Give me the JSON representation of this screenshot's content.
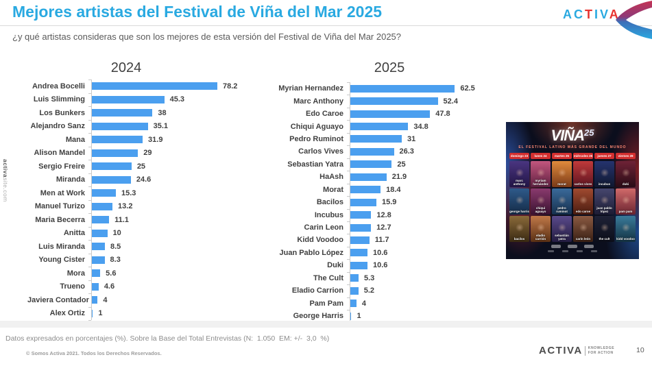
{
  "header": {
    "title": "Mejores artistas del Festival de Viña del Mar 2025",
    "subtitle": "¿y qué artistas consideras que son los mejores de esta versión del Festival de Viña del Mar 2025?"
  },
  "brand_top": {
    "name": "ACTIVA",
    "letters": [
      "A",
      "C",
      "T",
      "I",
      "V",
      "A"
    ],
    "letter_colors": [
      "#2AA9E0",
      "#2AA9E0",
      "#E8332F",
      "#2AA9E0",
      "#2AA9E0",
      "#E8332F"
    ],
    "swoosh_colors": {
      "top": "#C43354",
      "mid": "#8E3A78",
      "bottom": "#2AA8E0"
    }
  },
  "sidebar": {
    "site_bold": "activa",
    "site_rest": "site.com"
  },
  "chart_data": [
    {
      "type": "bar",
      "orientation": "horizontal",
      "title": "2024",
      "categories": [
        "Andrea Bocelli",
        "Luis Slimming",
        "Los Bunkers",
        "Alejandro Sanz",
        "Mana",
        "Alison Mandel",
        "Sergio Freire",
        "Miranda",
        "Men at Work",
        "Manuel Turizo",
        "Maria Becerra",
        "Anitta",
        "Luis Miranda",
        "Young Cister",
        "Mora",
        "Trueno",
        "Javiera Contador",
        "Alex Ortiz"
      ],
      "values": [
        78.2,
        45.3,
        38,
        35.1,
        31.9,
        29,
        25,
        24.6,
        15.3,
        13.2,
        11.1,
        10,
        8.5,
        8.3,
        5.6,
        4.6,
        4,
        1
      ],
      "xlim": [
        0,
        85
      ],
      "bar_color": "#4B9FEF",
      "value_labels": true,
      "grid": false,
      "legend": "none"
    },
    {
      "type": "bar",
      "orientation": "horizontal",
      "title": "2025",
      "categories": [
        "Myrian Hernandez",
        "Marc Anthony",
        "Edo Caroe",
        "Chiqui Aguayo",
        "Pedro Ruminot",
        "Carlos Vives",
        "Sebastian Yatra",
        "HaAsh",
        "Morat",
        "Bacilos",
        "Incubus",
        "Carin Leon",
        "Kidd Voodoo",
        "Juan Pablo López",
        "Duki",
        "The Cult",
        "Eladio Carrion",
        "Pam Pam",
        "George Harris"
      ],
      "values": [
        62.5,
        52.4,
        47.8,
        34.8,
        31,
        26.3,
        25,
        21.9,
        18.4,
        15.9,
        12.8,
        12.7,
        11.7,
        10.6,
        10.6,
        5.3,
        5.2,
        4,
        1
      ],
      "xlim": [
        0,
        75
      ],
      "bar_color": "#4B9FEF",
      "value_labels": true,
      "grid": false,
      "legend": "none"
    }
  ],
  "poster": {
    "title": "VIÑA",
    "year": "25",
    "subtitle": "EL FESTIVAL LATINO MÁS GRANDE DEL MUNDO",
    "days": [
      "domingo 23",
      "lunes 24",
      "martes 25",
      "miércoles 26",
      "jueves 27",
      "viernes 28"
    ],
    "artists": [
      [
        "marc anthony",
        "myriam hernández",
        "morat",
        "carlos vives",
        "incubus",
        "duki"
      ],
      [
        "george harris",
        "chiqui aguayo",
        "pedro ruminot",
        "edo caroe",
        "juan pablo lópez",
        "pam pam"
      ],
      [
        "bacilos",
        "eladio carrión",
        "sebastián yatra",
        "carín león",
        "the cult",
        "kidd voodoo"
      ]
    ]
  },
  "footer": {
    "note": "Datos expresados en porcentajes (%). Sobre la Base del Total Entrevistas (N:  1.050  EM: +/-  3,0  %)",
    "copyright": "© Somos Activa 2021. Todos los Derechos Reservados.",
    "brand": "ACTIVA",
    "tagline_line1": "KNOWLEDGE",
    "tagline_line2": "FOR ACTION",
    "page_number": "10"
  }
}
